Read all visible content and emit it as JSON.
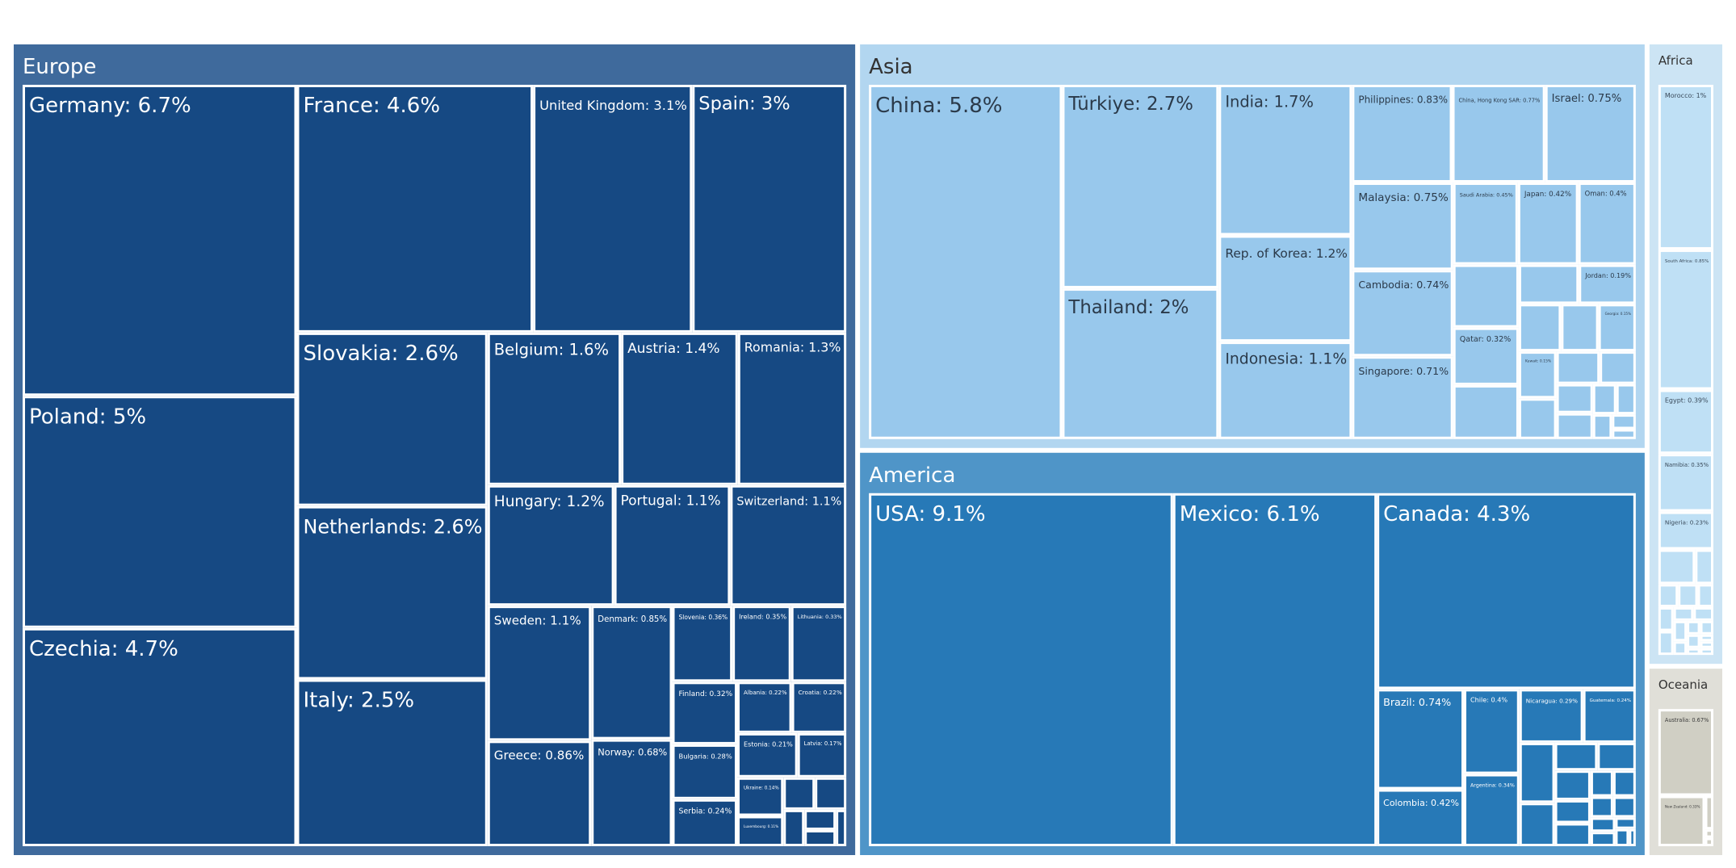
{
  "chart_data": {
    "type": "treemap",
    "title": "",
    "colors": {
      "Europe": {
        "parent": "#3f6a9c",
        "leaf": "#164983",
        "text": "#ffffff",
        "titleText": "#ffffff"
      },
      "America": {
        "parent": "#4f95c8",
        "leaf": "#2779b7",
        "text": "#ffffff",
        "titleText": "#ffffff"
      },
      "Asia": {
        "parent": "#b2d6f0",
        "leaf": "#98c8ec",
        "text": "#2b3a4a",
        "titleText": "#333333"
      },
      "Africa": {
        "parent": "#cce4f4",
        "leaf": "#bfe0f5",
        "text": "#3a4a5a",
        "titleText": "#333333"
      },
      "Oceania": {
        "parent": "#e0dfd8",
        "leaf": "#d0cfc4",
        "text": "#3a3a3a",
        "titleText": "#333333"
      }
    },
    "groups": [
      {
        "name": "Europe",
        "label": "Europe",
        "items": [
          {
            "name": "Germany",
            "label": "Germany: 6.7%",
            "value": 6.7
          },
          {
            "name": "Poland",
            "label": "Poland: 5%",
            "value": 5.0
          },
          {
            "name": "Czechia",
            "label": "Czechia: 4.7%",
            "value": 4.7
          },
          {
            "name": "France",
            "label": "France: 4.6%",
            "value": 4.6
          },
          {
            "name": "United Kingdom",
            "label": "United Kingdom: 3.1%",
            "value": 3.1
          },
          {
            "name": "Spain",
            "label": "Spain: 3%",
            "value": 3.0
          },
          {
            "name": "Slovakia",
            "label": "Slovakia: 2.6%",
            "value": 2.6
          },
          {
            "name": "Netherlands",
            "label": "Netherlands: 2.6%",
            "value": 2.6
          },
          {
            "name": "Italy",
            "label": "Italy: 2.5%",
            "value": 2.5
          },
          {
            "name": "Belgium",
            "label": "Belgium: 1.6%",
            "value": 1.6
          },
          {
            "name": "Austria",
            "label": "Austria: 1.4%",
            "value": 1.4
          },
          {
            "name": "Romania",
            "label": "Romania: 1.3%",
            "value": 1.3
          },
          {
            "name": "Hungary",
            "label": "Hungary: 1.2%",
            "value": 1.2
          },
          {
            "name": "Portugal",
            "label": "Portugal: 1.1%",
            "value": 1.1
          },
          {
            "name": "Switzerland",
            "label": "Switzerland: 1.1%",
            "value": 1.1
          },
          {
            "name": "Sweden",
            "label": "Sweden: 1.1%",
            "value": 1.1
          },
          {
            "name": "Greece",
            "label": "Greece: 0.86%",
            "value": 0.86
          },
          {
            "name": "Denmark",
            "label": "Denmark: 0.85%",
            "value": 0.85
          },
          {
            "name": "Norway",
            "label": "Norway: 0.68%",
            "value": 0.68
          },
          {
            "name": "Slovenia",
            "label": "Slovenia: 0.36%",
            "value": 0.36
          },
          {
            "name": "Ireland",
            "label": "Ireland: 0.35%",
            "value": 0.35
          },
          {
            "name": "Lithuania",
            "label": "Lithuania: 0.33%",
            "value": 0.33
          },
          {
            "name": "Finland",
            "label": "Finland: 0.32%",
            "value": 0.32
          },
          {
            "name": "Albania",
            "label": "Albania: 0.22%",
            "value": 0.22
          },
          {
            "name": "Croatia",
            "label": "Croatia: 0.22%",
            "value": 0.22
          },
          {
            "name": "Bulgaria",
            "label": "Bulgaria: 0.28%",
            "value": 0.28
          },
          {
            "name": "Estonia",
            "label": "Estonia: 0.21%",
            "value": 0.21
          },
          {
            "name": "Latvia",
            "label": "Latvia: 0.17%",
            "value": 0.17
          },
          {
            "name": "Serbia",
            "label": "Serbia: 0.24%",
            "value": 0.24
          },
          {
            "name": "Ukraine",
            "label": "Ukraine: 0.14%",
            "value": 0.14
          },
          {
            "name": "Luxembourg",
            "label": "Luxembourg: 0.11%",
            "value": 0.11
          },
          {
            "name": "",
            "label": "",
            "value": 0.08
          },
          {
            "name": "",
            "label": "",
            "value": 0.08
          },
          {
            "name": "",
            "label": "",
            "value": 0.06
          },
          {
            "name": "",
            "label": "",
            "value": 0.05
          },
          {
            "name": "",
            "label": "",
            "value": 0.04
          },
          {
            "name": "",
            "label": "",
            "value": 0.03
          }
        ]
      },
      {
        "name": "America",
        "label": "America",
        "items": [
          {
            "name": "USA",
            "label": "USA: 9.1%",
            "value": 9.1
          },
          {
            "name": "Mexico",
            "label": "Mexico: 6.1%",
            "value": 6.1
          },
          {
            "name": "Canada",
            "label": "Canada: 4.3%",
            "value": 4.3
          },
          {
            "name": "Brazil",
            "label": "Brazil: 0.74%",
            "value": 0.74
          },
          {
            "name": "Colombia",
            "label": "Colombia: 0.42%",
            "value": 0.42
          },
          {
            "name": "Chile",
            "label": "Chile: 0.4%",
            "value": 0.4
          },
          {
            "name": "Argentina",
            "label": "Argentina: 0.34%",
            "value": 0.34
          },
          {
            "name": "Nicaragua",
            "label": "Nicaragua: 0.29%",
            "value": 0.29
          },
          {
            "name": "Guatemala",
            "label": "Guatemala: 0.24%",
            "value": 0.24
          },
          {
            "name": "",
            "label": "",
            "value": 0.18
          },
          {
            "name": "",
            "label": "",
            "value": 0.13
          },
          {
            "name": "",
            "label": "",
            "value": 0.1
          },
          {
            "name": "",
            "label": "",
            "value": 0.09
          },
          {
            "name": "",
            "label": "",
            "value": 0.09
          },
          {
            "name": "",
            "label": "",
            "value": 0.07
          },
          {
            "name": "",
            "label": "",
            "value": 0.07
          },
          {
            "name": "",
            "label": "",
            "value": 0.05
          },
          {
            "name": "",
            "label": "",
            "value": 0.05
          },
          {
            "name": "",
            "label": "",
            "value": 0.04
          },
          {
            "name": "",
            "label": "",
            "value": 0.04
          },
          {
            "name": "",
            "label": "",
            "value": 0.03
          },
          {
            "name": "",
            "label": "",
            "value": 0.03
          },
          {
            "name": "",
            "label": "",
            "value": 0.02
          },
          {
            "name": "",
            "label": "",
            "value": 0.02
          },
          {
            "name": "",
            "label": "",
            "value": 0.01
          }
        ]
      },
      {
        "name": "Asia",
        "label": "Asia",
        "items": [
          {
            "name": "China",
            "label": "China: 5.8%",
            "value": 5.8
          },
          {
            "name": "Türkiye",
            "label": "Türkiye: 2.7%",
            "value": 2.7
          },
          {
            "name": "Thailand",
            "label": "Thailand: 2%",
            "value": 2.0
          },
          {
            "name": "India",
            "label": "India: 1.7%",
            "value": 1.7
          },
          {
            "name": "Rep. of Korea",
            "label": "Rep. of Korea: 1.2%",
            "value": 1.2
          },
          {
            "name": "Indonesia",
            "label": "Indonesia: 1.1%",
            "value": 1.1
          },
          {
            "name": "Philippines",
            "label": "Philippines: 0.83%",
            "value": 0.83
          },
          {
            "name": "China, Hong Kong SAR",
            "label": "China, Hong Kong SAR: 0.77%",
            "value": 0.77
          },
          {
            "name": "Israel",
            "label": "Israel: 0.75%",
            "value": 0.75
          },
          {
            "name": "Malaysia",
            "label": "Malaysia: 0.75%",
            "value": 0.75
          },
          {
            "name": "Cambodia",
            "label": "Cambodia: 0.74%",
            "value": 0.74
          },
          {
            "name": "Singapore",
            "label": "Singapore: 0.71%",
            "value": 0.71
          },
          {
            "name": "Saudi Arabia",
            "label": "Saudi Arabia: 0.45%",
            "value": 0.45
          },
          {
            "name": "Japan",
            "label": "Japan: 0.42%",
            "value": 0.42
          },
          {
            "name": "Oman",
            "label": "Oman: 0.4%",
            "value": 0.4
          },
          {
            "name": "",
            "label": "",
            "value": 0.35
          },
          {
            "name": "Qatar",
            "label": "Qatar: 0.32%",
            "value": 0.32
          },
          {
            "name": "",
            "label": "",
            "value": 0.3
          },
          {
            "name": "",
            "label": "",
            "value": 0.2
          },
          {
            "name": "",
            "label": "",
            "value": 0.17
          },
          {
            "name": "",
            "label": "",
            "value": 0.15
          },
          {
            "name": "Jordan",
            "label": "Jordan: 0.19%",
            "value": 0.19
          },
          {
            "name": "Georgia",
            "label": "Georgia: 0.15%",
            "value": 0.15
          },
          {
            "name": "Kuwait",
            "label": "Kuwait: 0.15%",
            "value": 0.15
          },
          {
            "name": "",
            "label": "",
            "value": 0.13
          },
          {
            "name": "",
            "label": "",
            "value": 0.12
          },
          {
            "name": "",
            "label": "",
            "value": 0.1
          },
          {
            "name": "",
            "label": "",
            "value": 0.09
          },
          {
            "name": "",
            "label": "",
            "value": 0.08
          },
          {
            "name": "",
            "label": "",
            "value": 0.06
          },
          {
            "name": "",
            "label": "",
            "value": 0.05
          },
          {
            "name": "",
            "label": "",
            "value": 0.04
          },
          {
            "name": "",
            "label": "",
            "value": 0.03
          },
          {
            "name": "",
            "label": "",
            "value": 0.02
          }
        ]
      },
      {
        "name": "Africa",
        "label": "Africa",
        "items": [
          {
            "name": "Morocco",
            "label": "Morocco: 1%",
            "value": 1.0
          },
          {
            "name": "South Africa",
            "label": "South Africa: 0.85%",
            "value": 0.85
          },
          {
            "name": "Egypt",
            "label": "Egypt: 0.39%",
            "value": 0.39
          },
          {
            "name": "Namibia",
            "label": "Namibia: 0.35%",
            "value": 0.35
          },
          {
            "name": "Nigeria",
            "label": "Nigeria: 0.23%",
            "value": 0.23
          },
          {
            "name": "",
            "label": "",
            "value": 0.14
          },
          {
            "name": "",
            "label": "",
            "value": 0.07
          },
          {
            "name": "",
            "label": "",
            "value": 0.05
          },
          {
            "name": "",
            "label": "",
            "value": 0.05
          },
          {
            "name": "",
            "label": "",
            "value": 0.04
          },
          {
            "name": "",
            "label": "",
            "value": 0.04
          },
          {
            "name": "",
            "label": "",
            "value": 0.04
          },
          {
            "name": "",
            "label": "",
            "value": 0.03
          },
          {
            "name": "",
            "label": "",
            "value": 0.03
          },
          {
            "name": "",
            "label": "",
            "value": 0.03
          },
          {
            "name": "",
            "label": "",
            "value": 0.02
          },
          {
            "name": "",
            "label": "",
            "value": 0.02
          },
          {
            "name": "",
            "label": "",
            "value": 0.02
          },
          {
            "name": "",
            "label": "",
            "value": 0.02
          },
          {
            "name": "",
            "label": "",
            "value": 0.01
          },
          {
            "name": "",
            "label": "",
            "value": 0.01
          },
          {
            "name": "",
            "label": "",
            "value": 0.01
          },
          {
            "name": "",
            "label": "",
            "value": 0.01
          }
        ]
      },
      {
        "name": "Oceania",
        "label": "Oceania",
        "items": [
          {
            "name": "Australia",
            "label": "Australia: 0.67%",
            "value": 0.67
          },
          {
            "name": "New Zealand",
            "label": "New Zealand: 0.33%",
            "value": 0.33
          },
          {
            "name": "",
            "label": "",
            "value": 0.04
          },
          {
            "name": "",
            "label": "",
            "value": 0.01
          },
          {
            "name": "",
            "label": "",
            "value": 0.01
          }
        ]
      }
    ]
  }
}
